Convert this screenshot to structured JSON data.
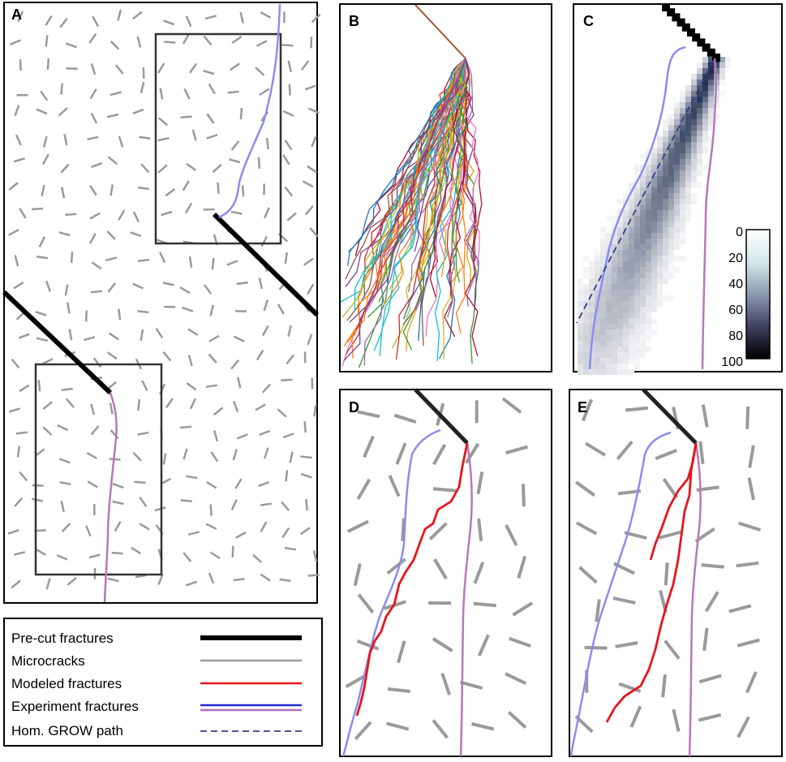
{
  "panels": {
    "A": {
      "label": "A"
    },
    "B": {
      "label": "B"
    },
    "C": {
      "label": "C",
      "colorbar_ticks": [
        "0",
        "20",
        "40",
        "60",
        "80",
        "100"
      ]
    },
    "D": {
      "label": "D"
    },
    "E": {
      "label": "E"
    }
  },
  "legend": {
    "items": [
      {
        "label": "Pre-cut fractures",
        "color": "#000000",
        "style": "thick"
      },
      {
        "label": "Microcracks",
        "color": "#9a9a9a",
        "style": "solid"
      },
      {
        "label": "Modeled fractures",
        "color": "#e8141b",
        "style": "solid"
      },
      {
        "label": "Experiment fractures",
        "color": "#2a2ad4",
        "color2": "#b070b8",
        "style": "double"
      },
      {
        "label": "Hom. GROW path",
        "color": "#3a3a8a",
        "style": "dashed"
      }
    ]
  },
  "colors": {
    "precut": "#000000",
    "microcrack": "#9a9a9a",
    "modeled": "#e8141b",
    "experiment_blue": "#8c8cf0",
    "experiment_pink": "#b878b8",
    "grow_path": "#3a3a8a"
  }
}
